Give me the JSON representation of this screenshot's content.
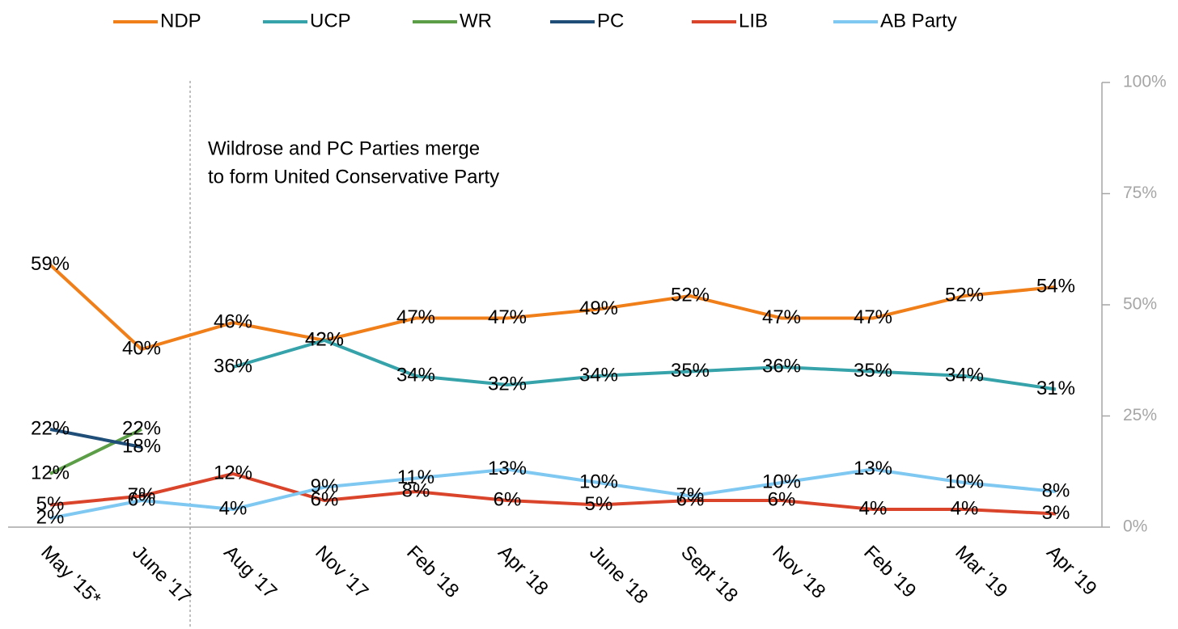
{
  "chart_data": {
    "type": "line",
    "annotation": [
      "Wildrose and PC Parties merge",
      "to form United Conservative Party"
    ],
    "categories": [
      "May '15*",
      "June '17",
      "Aug '17",
      "Nov '17",
      "Feb '18",
      "Apr '18",
      "June '18",
      "Sept '18",
      "Nov '18",
      "Feb '19",
      "Mar '19",
      "Apr '19"
    ],
    "series": [
      {
        "name": "NDP",
        "color": "#f07f19",
        "values": [
          59,
          40,
          46,
          42,
          47,
          47,
          49,
          52,
          47,
          47,
          52,
          54
        ],
        "value_labels": [
          "59%",
          "40%",
          "46%",
          "42%",
          "47%",
          "47%",
          "49%",
          "52%",
          "47%",
          "47%",
          "52%",
          "54%"
        ]
      },
      {
        "name": "UCP",
        "color": "#36a2aa",
        "values": [
          null,
          null,
          36,
          42,
          34,
          32,
          34,
          35,
          36,
          35,
          34,
          31
        ],
        "value_labels": [
          null,
          null,
          "36%",
          "42%",
          "34%",
          "32%",
          "34%",
          "35%",
          "36%",
          "35%",
          "34%",
          "31%"
        ]
      },
      {
        "name": "WR",
        "color": "#5c9e47",
        "values": [
          12,
          22,
          null,
          null,
          null,
          null,
          null,
          null,
          null,
          null,
          null,
          null
        ],
        "value_labels": [
          "12%",
          "22%",
          null,
          null,
          null,
          null,
          null,
          null,
          null,
          null,
          null,
          null
        ]
      },
      {
        "name": "PC",
        "color": "#1f4e79",
        "values": [
          22,
          18,
          null,
          null,
          null,
          null,
          null,
          null,
          null,
          null,
          null,
          null
        ],
        "value_labels": [
          "22%",
          "18%",
          null,
          null,
          null,
          null,
          null,
          null,
          null,
          null,
          null,
          null
        ]
      },
      {
        "name": "LIB",
        "color": "#d9442a",
        "values": [
          5,
          7,
          12,
          6,
          8,
          6,
          5,
          6,
          6,
          4,
          4,
          3
        ],
        "value_labels": [
          "5%",
          "7%",
          "12%",
          "6%",
          "8%",
          "6%",
          "5%",
          "6%",
          "6%",
          "4%",
          "4%",
          "3%"
        ]
      },
      {
        "name": "AB Party",
        "color": "#7ec8f2",
        "values": [
          2,
          6,
          4,
          9,
          11,
          13,
          10,
          7,
          10,
          13,
          10,
          8
        ],
        "value_labels": [
          "2%",
          "6%",
          "4%",
          "9%",
          "11%",
          "13%",
          "10%",
          "7%",
          "10%",
          "13%",
          "10%",
          "8%"
        ]
      }
    ],
    "ylim": [
      0,
      100
    ],
    "yticks": [
      {
        "value": 0,
        "label": "0%"
      },
      {
        "value": 25,
        "label": "25%"
      },
      {
        "value": 50,
        "label": "50%"
      },
      {
        "value": 75,
        "label": "75%"
      },
      {
        "value": 100,
        "label": "100%"
      }
    ],
    "legend": "top"
  }
}
